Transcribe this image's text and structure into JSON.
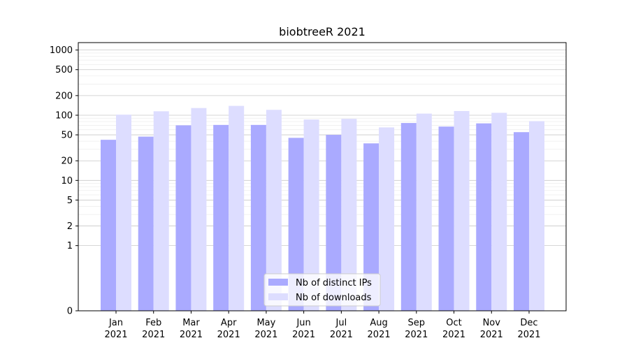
{
  "chart_data": {
    "type": "bar",
    "title": "biobtreeR 2021",
    "xlabel": "",
    "ylabel": "",
    "yscale": "symlog",
    "ylim": [
      0,
      1300
    ],
    "yticks": [
      0,
      1,
      2,
      5,
      10,
      20,
      50,
      100,
      200,
      500,
      1000
    ],
    "categories": [
      [
        "Jan",
        "2021"
      ],
      [
        "Feb",
        "2021"
      ],
      [
        "Mar",
        "2021"
      ],
      [
        "Apr",
        "2021"
      ],
      [
        "May",
        "2021"
      ],
      [
        "Jun",
        "2021"
      ],
      [
        "Jul",
        "2021"
      ],
      [
        "Aug",
        "2021"
      ],
      [
        "Sep",
        "2021"
      ],
      [
        "Oct",
        "2021"
      ],
      [
        "Nov",
        "2021"
      ],
      [
        "Dec",
        "2021"
      ]
    ],
    "series": [
      {
        "name": "Nb of distinct IPs",
        "color": "#aaaaff",
        "values": [
          42,
          47,
          70,
          71,
          71,
          45,
          50,
          37,
          76,
          67,
          75,
          55
        ]
      },
      {
        "name": "Nb of downloads",
        "color": "#ddddff",
        "values": [
          102,
          115,
          129,
          139,
          121,
          86,
          88,
          65,
          106,
          116,
          109,
          81
        ]
      }
    ],
    "grid": true,
    "legend_position": "bottom-center"
  }
}
